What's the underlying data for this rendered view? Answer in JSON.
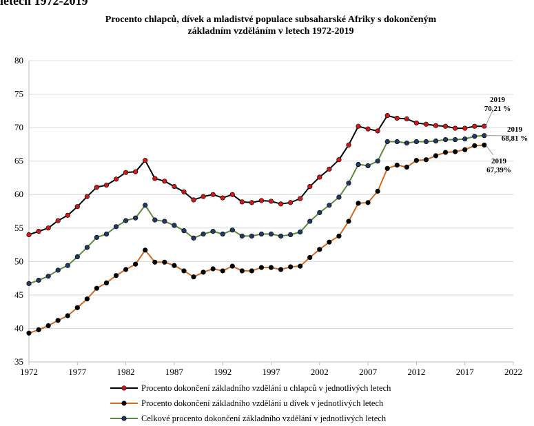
{
  "page": {
    "top_fragment": "letech 1972-2019"
  },
  "chart_data": {
    "type": "line",
    "title_lines": [
      "Procento chlapců, dívek a mladistvé populace subsaharské Afriky s dokončeným",
      "základním vzděláním v letech 1972-2019"
    ],
    "xlabel": "",
    "ylabel": "",
    "xlim": [
      1972,
      2022
    ],
    "ylim": [
      35,
      80
    ],
    "xticks": [
      1972,
      1977,
      1982,
      1987,
      1992,
      1997,
      2002,
      2007,
      2012,
      2017,
      2022
    ],
    "yticks": [
      35,
      40,
      45,
      50,
      55,
      60,
      65,
      70,
      75,
      80
    ],
    "grid": "horizontal",
    "legend_position": "bottom",
    "x": [
      1972,
      1973,
      1974,
      1975,
      1976,
      1977,
      1978,
      1979,
      1980,
      1981,
      1982,
      1983,
      1984,
      1985,
      1986,
      1987,
      1988,
      1989,
      1990,
      1991,
      1992,
      1993,
      1994,
      1995,
      1996,
      1997,
      1998,
      1999,
      2000,
      2001,
      2002,
      2003,
      2004,
      2005,
      2006,
      2007,
      2008,
      2009,
      2010,
      2011,
      2012,
      2013,
      2014,
      2015,
      2016,
      2017,
      2018,
      2019
    ],
    "series": [
      {
        "name": "Procento dokončení základního vzdělání u chlapců  v jednotlivých letech",
        "marker_color": "#cc1a1a",
        "line_color": "#000000",
        "values": [
          54.0,
          54.5,
          55.0,
          56.1,
          56.9,
          58.2,
          59.7,
          61.1,
          61.4,
          62.3,
          63.3,
          63.4,
          65.1,
          62.4,
          62.0,
          61.2,
          60.4,
          59.2,
          59.7,
          60.0,
          59.5,
          60.0,
          58.9,
          58.8,
          59.1,
          59.0,
          58.6,
          58.8,
          59.4,
          61.2,
          62.6,
          63.8,
          65.2,
          67.4,
          70.2,
          69.8,
          69.5,
          71.8,
          71.4,
          71.3,
          70.7,
          70.5,
          70.3,
          70.2,
          69.9,
          69.9,
          70.2,
          70.21
        ]
      },
      {
        "name": "Procento dokončení základního vzdělání u dívek v jednotlivých letech",
        "marker_color": "#000000",
        "line_color": "#d2691e",
        "values": [
          39.3,
          39.8,
          40.4,
          41.2,
          41.9,
          43.1,
          44.4,
          46.0,
          46.8,
          47.9,
          48.8,
          49.6,
          51.7,
          49.9,
          49.9,
          49.4,
          48.6,
          47.7,
          48.4,
          48.9,
          48.6,
          49.3,
          48.6,
          48.6,
          49.1,
          49.1,
          48.8,
          49.2,
          49.3,
          50.6,
          51.8,
          52.9,
          53.8,
          56.0,
          58.7,
          58.8,
          60.5,
          63.9,
          64.4,
          64.1,
          65.1,
          65.2,
          65.8,
          66.3,
          66.4,
          66.7,
          67.3,
          67.39
        ]
      },
      {
        "name": "Celkové procento dokončení základního vzdělání v jednotlivých letech",
        "marker_color": "#1f3864",
        "line_color": "#5e8a3e",
        "values": [
          46.7,
          47.2,
          47.8,
          48.7,
          49.4,
          50.7,
          52.1,
          53.6,
          54.1,
          55.2,
          56.1,
          56.5,
          58.4,
          56.2,
          56.0,
          55.4,
          54.6,
          53.5,
          54.1,
          54.5,
          54.1,
          54.7,
          53.8,
          53.8,
          54.1,
          54.1,
          53.8,
          54.0,
          54.4,
          56.0,
          57.3,
          58.4,
          59.6,
          61.7,
          64.5,
          64.3,
          65.0,
          67.9,
          67.9,
          67.7,
          67.9,
          67.9,
          68.0,
          68.2,
          68.2,
          68.3,
          68.7,
          68.81
        ]
      }
    ],
    "annotations": [
      {
        "series": 0,
        "year": "2019",
        "value_label": "70,21 %"
      },
      {
        "series": 2,
        "year": "2019",
        "value_label": "68,81 %"
      },
      {
        "series": 1,
        "year": "2019",
        "value_label": "67,39%"
      }
    ],
    "colors": {
      "axis": "#bfbfbf",
      "grid": "#d9d9d9"
    }
  }
}
